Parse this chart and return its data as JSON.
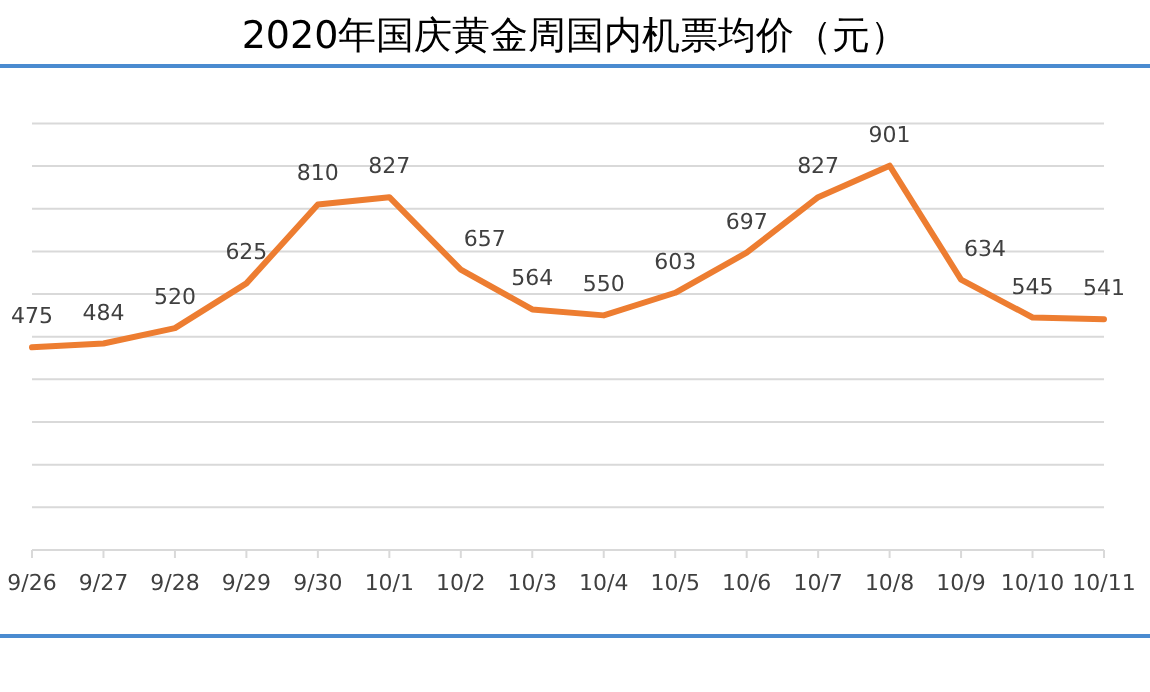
{
  "chart_data": {
    "type": "line",
    "title": "2020年国庆黄金周国内机票均价（元）",
    "categories": [
      "9/26",
      "9/27",
      "9/28",
      "9/29",
      "9/30",
      "10/1",
      "10/2",
      "10/3",
      "10/4",
      "10/5",
      "10/6",
      "10/7",
      "10/8",
      "10/9",
      "10/10",
      "10/11"
    ],
    "series": [
      {
        "color": "#ed7d31",
        "values": [
          475,
          484,
          520,
          625,
          810,
          827,
          657,
          564,
          550,
          603,
          697,
          827,
          901,
          634,
          545,
          541
        ]
      }
    ],
    "ylim": [
      0,
      1000
    ],
    "yticks": [
      {
        "value": 0,
        "label": null
      },
      {
        "value": 100,
        "label": null
      },
      {
        "value": 200,
        "label": null
      },
      {
        "value": 300,
        "label": null
      },
      {
        "value": 400,
        "label": null
      },
      {
        "value": 500,
        "label": null
      },
      {
        "value": 600,
        "label": null
      },
      {
        "value": 700,
        "label": null
      },
      {
        "value": 800,
        "label": null
      },
      {
        "value": 900,
        "label": null
      },
      {
        "value": 1000,
        "label": null
      }
    ],
    "grid": "y",
    "tick_labels": "x",
    "data_labels": true,
    "marker": "none",
    "line_style": "solid"
  }
}
